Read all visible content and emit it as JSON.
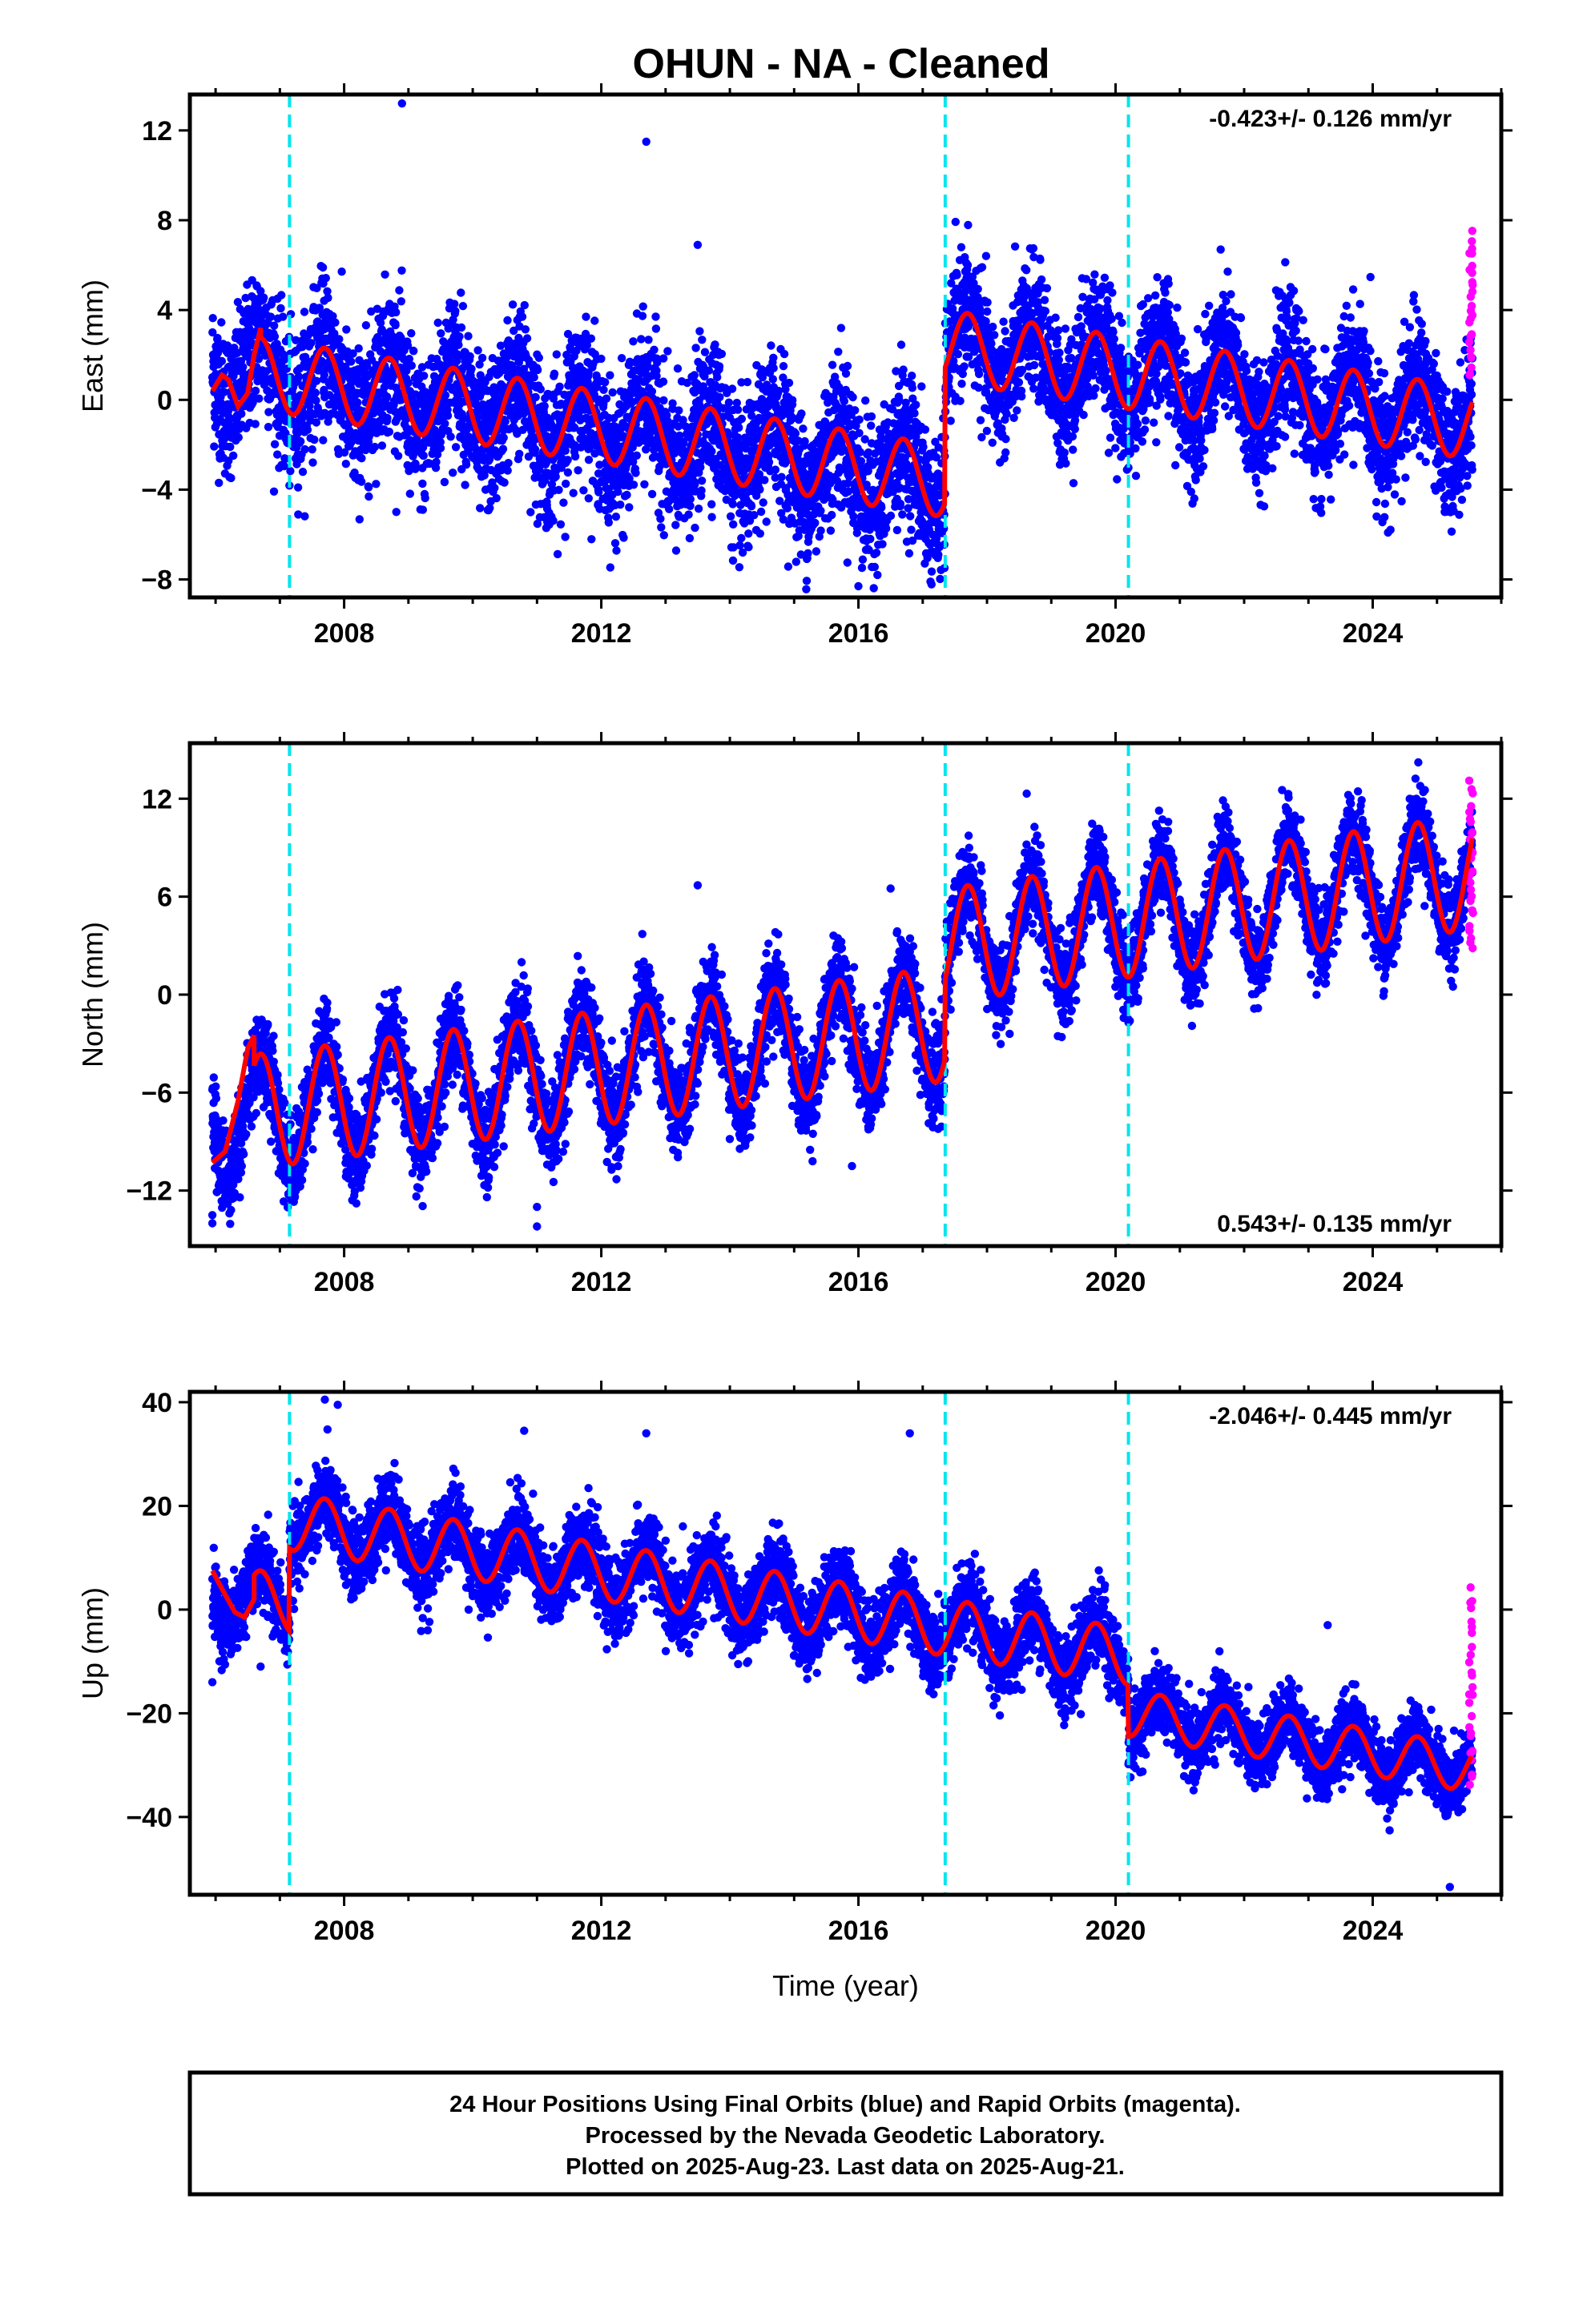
{
  "title": "OHUN  - NA - Cleaned",
  "colors": {
    "final": "#0000ff",
    "rapid": "#ff00ff",
    "model": "#ff0000",
    "breaks": "#00e5ee"
  },
  "chart_data": [
    {
      "type": "scatter",
      "id": "east",
      "ylabel": "East (mm)",
      "xlim": [
        2005.6,
        2026.0
      ],
      "ylim": [
        -8.8,
        13.6
      ],
      "yticks": [
        -8,
        -4,
        0,
        4,
        8,
        12
      ],
      "xticks": [
        2008,
        2012,
        2016,
        2020,
        2024
      ],
      "xtick_labels": [
        "2008",
        "2012",
        "2016",
        "2020",
        "2024"
      ],
      "rate": "-0.423+/- 0.126 mm/yr",
      "rate_position": "top-right",
      "breaks": [
        2007.15,
        2017.35,
        2020.2
      ],
      "series": [
        {
          "segment": "pre-2017",
          "from": 2005.95,
          "to": 2017.35,
          "offset": 1.5,
          "slope": -0.45,
          "annual_amp": 1.6,
          "phase": 0.45,
          "scatter_sd": 1.6
        },
        {
          "segment": "post-2017",
          "from": 2017.35,
          "to": 2025.55,
          "offset": 2.4,
          "slope": -0.42,
          "annual_amp": 1.6,
          "phase": 0.45,
          "scatter_sd": 1.4
        }
      ],
      "outliers": [
        [
          2008.9,
          13.2
        ],
        [
          2012.7,
          11.5
        ],
        [
          2013.5,
          6.9
        ],
        [
          2018.7,
          6.7
        ],
        [
          2010.9,
          -5.0
        ],
        [
          2014.2,
          -6.8
        ],
        [
          2016.0,
          -8.3
        ]
      ],
      "rapid_range": [
        1.0,
        7.4
      ],
      "start_wiggle": [
        [
          2005.95,
          0.4
        ],
        [
          2006.1,
          1.1
        ],
        [
          2006.2,
          0.9
        ],
        [
          2006.35,
          -0.3
        ],
        [
          2006.5,
          0.3
        ],
        [
          2006.6,
          2.0
        ],
        [
          2006.7,
          3.2
        ]
      ]
    },
    {
      "type": "scatter",
      "id": "north",
      "ylabel": "North (mm)",
      "xlim": [
        2005.6,
        2026.0
      ],
      "ylim": [
        -15.4,
        15.4
      ],
      "yticks": [
        -12,
        -6,
        0,
        6,
        12
      ],
      "xticks": [
        2008,
        2012,
        2016,
        2020,
        2024
      ],
      "xtick_labels": [
        "2008",
        "2012",
        "2016",
        "2020",
        "2024"
      ],
      "rate": "0.543+/- 0.135 mm/yr",
      "rate_position": "bottom-right",
      "breaks": [
        2007.15,
        2017.35,
        2020.2
      ],
      "series": [
        {
          "segment": "pre-2017",
          "from": 2005.95,
          "to": 2017.35,
          "offset": -7.5,
          "slope": 0.5,
          "annual_amp": 3.5,
          "phase": 0.45,
          "scatter_sd": 1.4
        },
        {
          "segment": "post-2017",
          "from": 2017.35,
          "to": 2025.55,
          "offset": 3.0,
          "slope": 0.55,
          "annual_amp": 3.5,
          "phase": 0.45,
          "scatter_sd": 1.3
        }
      ],
      "outliers": [
        [
          2005.95,
          -13.5
        ],
        [
          2005.95,
          -14.0
        ],
        [
          2011.0,
          -14.2
        ],
        [
          2011.0,
          -13.0
        ],
        [
          2013.5,
          6.7
        ],
        [
          2016.5,
          6.5
        ],
        [
          2015.9,
          -10.5
        ]
      ],
      "rapid_range": [
        2.8,
        13.0
      ],
      "start_wiggle": [
        [
          2005.95,
          -10.3
        ],
        [
          2006.15,
          -9.6
        ],
        [
          2006.35,
          -6.5
        ],
        [
          2006.5,
          -3.3
        ],
        [
          2006.6,
          -2.5
        ]
      ]
    },
    {
      "type": "scatter",
      "id": "up",
      "ylabel": "Up (mm)",
      "xlabel": "Time (year)",
      "xlim": [
        2005.6,
        2026.0
      ],
      "ylim": [
        -55,
        42
      ],
      "yticks": [
        -40,
        -20,
        0,
        20,
        40
      ],
      "xticks": [
        2008,
        2012,
        2016,
        2020,
        2024
      ],
      "xtick_labels": [
        "2008",
        "2012",
        "2016",
        "2020",
        "2024"
      ],
      "rate": "-2.046+/- 0.445 mm/yr",
      "rate_position": "top-right",
      "breaks": [
        2007.15,
        2017.35,
        2020.2
      ],
      "series": [
        {
          "segment": "pre-2007",
          "from": 2005.95,
          "to": 2007.15,
          "offset": 3.5,
          "slope": -2.0,
          "annual_amp": 5.5,
          "phase": 0.45,
          "scatter_sd": 3.5
        },
        {
          "segment": "2007-2020",
          "from": 2007.15,
          "to": 2020.2,
          "offset": 17.0,
          "slope": -2.0,
          "annual_amp": 5.5,
          "phase": 0.45,
          "scatter_sd": 3.8
        },
        {
          "segment": "post-2020",
          "from": 2020.2,
          "to": 2025.55,
          "offset": -20.0,
          "slope": -2.0,
          "annual_amp": 4.5,
          "phase": 0.45,
          "scatter_sd": 3.3
        }
      ],
      "outliers": [
        [
          2007.7,
          40.5
        ],
        [
          2007.9,
          39.5
        ],
        [
          2010.8,
          34.5
        ],
        [
          2012.7,
          34.0
        ],
        [
          2016.8,
          34.0
        ],
        [
          2023.3,
          -3.0
        ],
        [
          2025.2,
          -53.5
        ],
        [
          2005.95,
          -14.0
        ],
        [
          2006.7,
          -11.0
        ],
        [
          2009.3,
          -4.0
        ]
      ],
      "rapid_range": [
        -34,
        4
      ],
      "start_wiggle": [
        [
          2005.95,
          7.5
        ],
        [
          2006.1,
          4.0
        ],
        [
          2006.3,
          -0.5
        ],
        [
          2006.45,
          -1.5
        ],
        [
          2006.6,
          2.0
        ]
      ]
    }
  ],
  "footer": {
    "line1": "24 Hour Positions Using Final Orbits (blue) and Rapid Orbits (magenta).",
    "line2": "Processed by the Nevada Geodetic Laboratory.",
    "line3": "Plotted on 2025-Aug-23. Last data on 2025-Aug-21."
  }
}
